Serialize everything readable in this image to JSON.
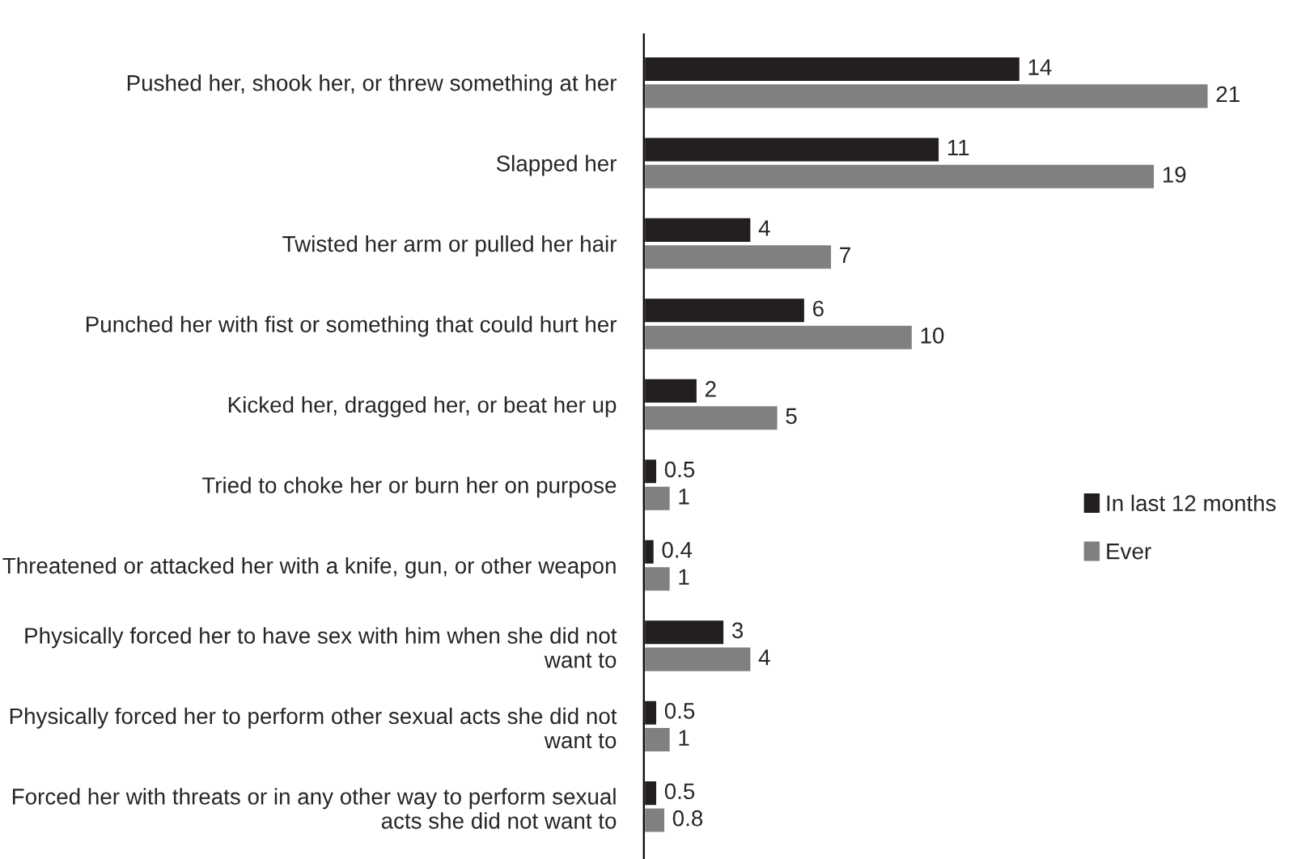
{
  "chart_data": {
    "type": "bar",
    "orientation": "horizontal",
    "categories": [
      "Pushed her, shook her, or threw something at her",
      "Slapped her",
      "Twisted her arm or pulled her hair",
      "Punched her with fist or something that could hurt her",
      "Kicked her, dragged her, or beat her up",
      "Tried to choke her or burn her on purpose",
      "Threatened or attacked her with a knife, gun, or other weapon",
      "Physically forced her to have sex with him when she did not want to",
      "Physically forced her to perform other sexual acts she did not want to",
      "Forced her with threats or in any other way to perform sexual acts she did not want to"
    ],
    "series": [
      {
        "name": "In last 12 months",
        "color": "#231f20",
        "values": [
          14,
          11,
          4,
          6,
          2,
          0.5,
          0.4,
          3,
          0.5,
          0.5
        ]
      },
      {
        "name": "Ever",
        "color": "#808080",
        "values": [
          21,
          19,
          7,
          10,
          5,
          1,
          1,
          4,
          1,
          0.8
        ]
      }
    ],
    "data_labels": true,
    "legend": "right",
    "tick_labels": "y",
    "grid": false
  }
}
